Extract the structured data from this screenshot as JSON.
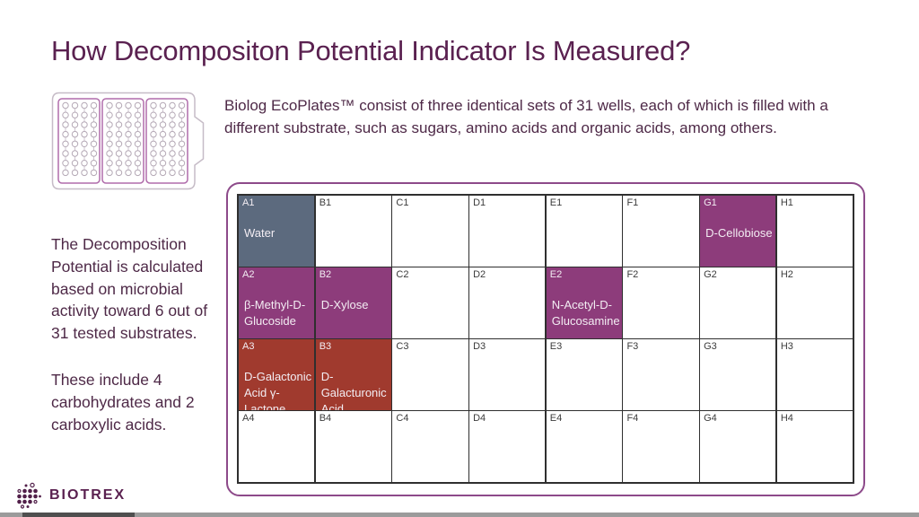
{
  "slide": {
    "title": "How Decompositon Potential Indicator Is Measured?",
    "description": "Biolog EcoPlates™ consist of three identical sets of 31 wells, each of which is filled with a different substrate, such as sugars, amino acids and organic acids, among others.",
    "left_note_p1": "The Decomposition Potential is calculated based on microbial activity toward 6 out of 31 tested substrates.",
    "left_note_p2": "These include 4 carbohydrates and 2 carboxylic acids.",
    "logo_text": "BIOTREX"
  },
  "colors": {
    "title": "#5a2150",
    "body_text": "#4e2947",
    "container_border": "#8d4a8a",
    "grid_line": "#2f2f2f",
    "water_cell": "#5c6a7e",
    "carbohydrate_cell": "#8d3c7b",
    "carboxylic_cell": "#a03a2e",
    "cell_text_light": "#f3edf3",
    "cell_id_dark": "#3b3b3b"
  },
  "plate": {
    "columns": [
      "A",
      "B",
      "C",
      "D",
      "E",
      "F",
      "G",
      "H"
    ],
    "rows": [
      "1",
      "2",
      "3",
      "4"
    ],
    "wells": [
      {
        "id": "A1",
        "label": "Water",
        "type": "water"
      },
      {
        "id": "B1",
        "label": "",
        "type": "empty"
      },
      {
        "id": "C1",
        "label": "",
        "type": "empty"
      },
      {
        "id": "D1",
        "label": "",
        "type": "empty"
      },
      {
        "id": "E1",
        "label": "",
        "type": "empty"
      },
      {
        "id": "F1",
        "label": "",
        "type": "empty"
      },
      {
        "id": "G1",
        "label": "D-Cellobiose",
        "type": "carbohydrate"
      },
      {
        "id": "H1",
        "label": "",
        "type": "empty"
      },
      {
        "id": "A2",
        "label": "β-Methyl-D-Glucoside",
        "type": "carbohydrate"
      },
      {
        "id": "B2",
        "label": "D-Xylose",
        "type": "carbohydrate"
      },
      {
        "id": "C2",
        "label": "",
        "type": "empty"
      },
      {
        "id": "D2",
        "label": "",
        "type": "empty"
      },
      {
        "id": "E2",
        "label": "N-Acetyl-D-Glucosamine",
        "type": "carbohydrate"
      },
      {
        "id": "F2",
        "label": "",
        "type": "empty"
      },
      {
        "id": "G2",
        "label": "",
        "type": "empty"
      },
      {
        "id": "H2",
        "label": "",
        "type": "empty"
      },
      {
        "id": "A3",
        "label": "D-Galactonic Acid γ-Lactone",
        "type": "carboxylic"
      },
      {
        "id": "B3",
        "label": "D-Galacturonic Acid",
        "type": "carboxylic"
      },
      {
        "id": "C3",
        "label": "",
        "type": "empty"
      },
      {
        "id": "D3",
        "label": "",
        "type": "empty"
      },
      {
        "id": "E3",
        "label": "",
        "type": "empty"
      },
      {
        "id": "F3",
        "label": "",
        "type": "empty"
      },
      {
        "id": "G3",
        "label": "",
        "type": "empty"
      },
      {
        "id": "H3",
        "label": "",
        "type": "empty"
      },
      {
        "id": "A4",
        "label": "",
        "type": "empty"
      },
      {
        "id": "B4",
        "label": "",
        "type": "empty"
      },
      {
        "id": "C4",
        "label": "",
        "type": "empty"
      },
      {
        "id": "D4",
        "label": "",
        "type": "empty"
      },
      {
        "id": "E4",
        "label": "",
        "type": "empty"
      },
      {
        "id": "F4",
        "label": "",
        "type": "empty"
      },
      {
        "id": "G4",
        "label": "",
        "type": "empty"
      },
      {
        "id": "H4",
        "label": "",
        "type": "empty"
      }
    ]
  }
}
